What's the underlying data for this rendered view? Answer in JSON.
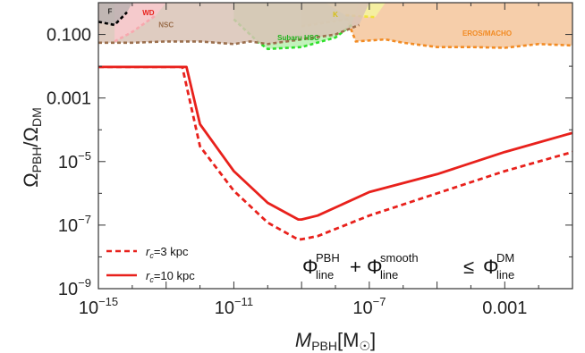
{
  "chart_data": {
    "type": "line",
    "xscale": "log",
    "yscale": "log",
    "xlim": [
      1e-15,
      0.1
    ],
    "ylim": [
      1e-09,
      1.0
    ],
    "xlabel": {
      "base": "M",
      "sub": "PBH",
      "unit_open": "[M",
      "unit_sub": "☉",
      "unit_close": "]"
    },
    "ylabel": {
      "num": "Ω",
      "num_sub": "PBH",
      "slash": "/",
      "den": "Ω",
      "den_sub": "DM"
    },
    "x_ticks": [
      {
        "value": 1e-15,
        "mantissa": "10",
        "exp": "−15"
      },
      {
        "value": 1e-11,
        "mantissa": "10",
        "exp": "−11"
      },
      {
        "value": 1e-07,
        "mantissa": "10",
        "exp": "−7"
      },
      {
        "value": 0.001,
        "text": "0.001"
      }
    ],
    "y_ticks": [
      {
        "value": 1e-09,
        "mantissa": "10",
        "exp": "−9"
      },
      {
        "value": 1e-07,
        "mantissa": "10",
        "exp": "−7"
      },
      {
        "value": 1e-05,
        "mantissa": "10",
        "exp": "−5"
      },
      {
        "value": 0.001,
        "text": "0.001"
      },
      {
        "value": 0.1,
        "text": "0.100"
      }
    ],
    "series": [
      {
        "rc": "3 kpc",
        "color": "#e8211c",
        "dash": true,
        "points": [
          [
            1e-15,
            0.0095
          ],
          [
            1e-13,
            0.0095
          ],
          [
            3e-13,
            0.0095
          ],
          [
            1e-12,
            3e-05
          ],
          [
            1e-11,
            1.2e-06
          ],
          [
            1e-10,
            1.2e-07
          ],
          [
            8e-10,
            3.5e-08
          ],
          [
            1e-09,
            3.6e-08
          ],
          [
            3e-09,
            4.5e-08
          ],
          [
            1e-07,
            2e-07
          ],
          [
            1e-05,
            1e-06
          ],
          [
            0.001,
            5e-06
          ],
          [
            0.1,
            2e-05
          ]
        ]
      },
      {
        "rc": "10 kpc",
        "color": "#e8211c",
        "dash": false,
        "points": [
          [
            1e-15,
            0.0095
          ],
          [
            4e-13,
            0.0095
          ],
          [
            1e-12,
            0.00015
          ],
          [
            1e-11,
            5e-06
          ],
          [
            1e-10,
            5e-07
          ],
          [
            8e-10,
            1.5e-07
          ],
          [
            1e-09,
            1.5e-07
          ],
          [
            3e-09,
            2e-07
          ],
          [
            1e-07,
            1.1e-06
          ],
          [
            1e-05,
            4e-06
          ],
          [
            0.001,
            2e-05
          ],
          [
            0.1,
            8e-05
          ]
        ]
      }
    ],
    "regions": [
      {
        "label": "EROS/MACHO",
        "fill": "#f5c59b",
        "stroke": "#f28b23",
        "points": [
          [
            1e-09,
            1.0
          ],
          [
            1e-09,
            0.18
          ],
          [
            2.2e-08,
            0.3
          ],
          [
            4e-08,
            0.06
          ],
          [
            3e-07,
            0.07
          ],
          [
            1e-06,
            0.055
          ],
          [
            1e-05,
            0.04
          ],
          [
            0.0001,
            0.04
          ],
          [
            0.001,
            0.038
          ],
          [
            0.01,
            0.05
          ],
          [
            0.1,
            0.045
          ],
          [
            0.1,
            1.0
          ]
        ],
        "label_at": [
          0.0003,
          0.09
        ],
        "label_color": "#f28b23"
      },
      {
        "label": "Subaru HSC",
        "fill": "#b8f0b0",
        "stroke": "#2ee02a",
        "points": [
          [
            1e-11,
            1.0
          ],
          [
            1e-11,
            0.3
          ],
          [
            5e-11,
            0.06
          ],
          [
            1e-10,
            0.035
          ],
          [
            1e-09,
            0.04
          ],
          [
            1e-08,
            0.08
          ],
          [
            3e-08,
            0.2
          ],
          [
            5e-08,
            1.0
          ]
        ],
        "label_at": [
          8e-10,
          0.065
        ],
        "label_color": "#1db31a"
      },
      {
        "label": "K",
        "fill": "#f4f5a0",
        "stroke": "#f0e23a",
        "points": [
          [
            5e-09,
            1.0
          ],
          [
            2e-08,
            0.4
          ],
          [
            1.5e-07,
            0.35
          ],
          [
            3e-07,
            1.0
          ]
        ],
        "label_at": [
          1e-08,
          0.35
        ],
        "label_color": "#d5c011"
      },
      {
        "label": "NSC",
        "fill": "#d9c3b6",
        "stroke": "#9b6f4d",
        "points": [
          [
            1e-15,
            0.055
          ],
          [
            1e-14,
            0.055
          ],
          [
            1e-13,
            0.06
          ],
          [
            1e-12,
            0.06
          ],
          [
            1e-11,
            0.05
          ],
          [
            3e-11,
            0.06
          ],
          [
            1e-10,
            0.05
          ],
          [
            1e-09,
            0.07
          ],
          [
            1e-08,
            0.1
          ],
          [
            5e-08,
            0.2
          ],
          [
            1e-07,
            1.0
          ],
          [
            1e-15,
            1.0
          ]
        ],
        "label_at": [
          1e-13,
          0.17
        ],
        "label_color": "#9b6f4d"
      },
      {
        "label": "WD",
        "fill": "#f9c9ce",
        "stroke": "#f7a8ae",
        "points": [
          [
            3e-15,
            0.06
          ],
          [
            1e-14,
            0.12
          ],
          [
            5e-14,
            0.4
          ],
          [
            1e-13,
            1.0
          ],
          [
            3e-15,
            1.0
          ]
        ],
        "label_at": [
          3e-14,
          0.4
        ],
        "label_color": "#e8211c"
      },
      {
        "label": "F",
        "fill": "#bbb2b0",
        "stroke": "#000000",
        "points": [
          [
            1e-15,
            0.25
          ],
          [
            3e-15,
            0.2
          ],
          [
            7e-15,
            0.5
          ],
          [
            1e-14,
            1.0
          ],
          [
            1e-15,
            1.0
          ]
        ],
        "label_at": [
          2.2e-15,
          0.45
        ],
        "label_color": "#222222"
      }
    ],
    "legend": {
      "position": "bottom-left",
      "items": [
        {
          "rc_sym": "r",
          "rc_sub": "c",
          "value": "=3 kpc",
          "dash": true
        },
        {
          "rc_sym": "r",
          "rc_sub": "c",
          "value": "=10 kpc",
          "dash": false
        }
      ]
    },
    "annotation": {
      "t1": "Φ",
      "t1_sup": "PBH",
      "t1_sub": "line",
      "op1": "+",
      "t2": "Φ",
      "t2_sup": "smooth",
      "t2_sub": "line",
      "op2": "≤",
      "t3": "Φ",
      "t3_sup": "DM",
      "t3_sub": "line"
    },
    "frame_color": "#333333",
    "grid": false
  }
}
